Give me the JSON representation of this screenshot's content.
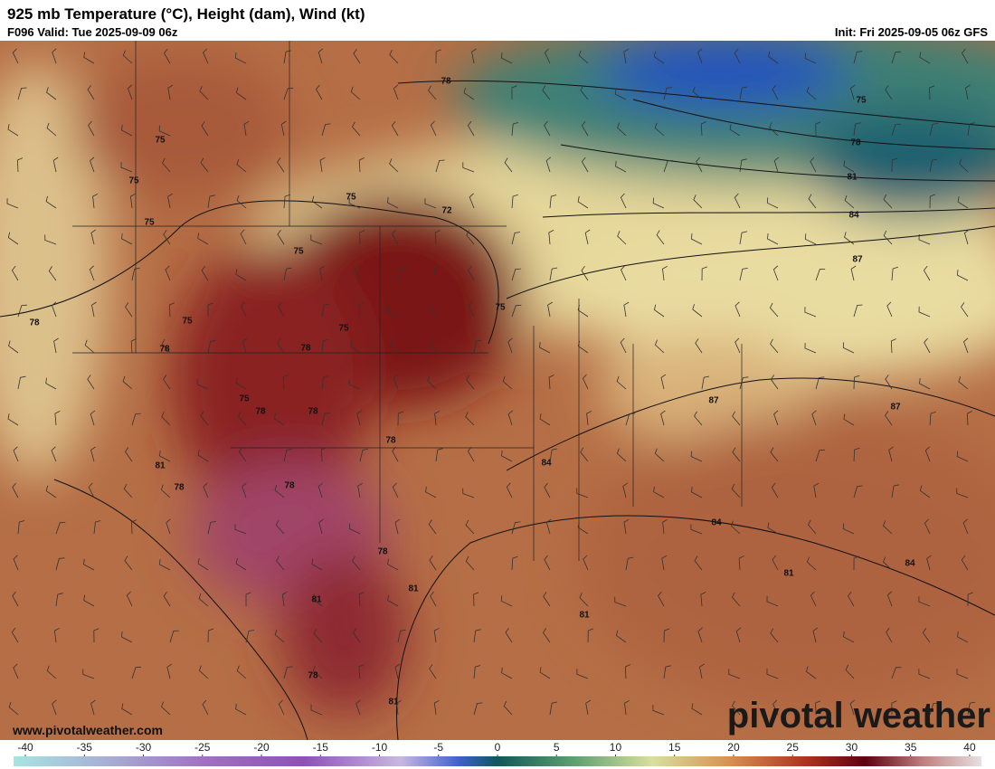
{
  "header": {
    "title": "925 mb Temperature (°C), Height (dam), Wind (kt)",
    "valid": "F096 Valid: Tue 2025-09-09 06z",
    "init": "Init: Fri 2025-09-05 06z GFS"
  },
  "map": {
    "height_labels": [
      "78",
      "75",
      "75",
      "75",
      "72",
      "75",
      "75",
      "78",
      "75",
      "78",
      "75",
      "78",
      "75",
      "75",
      "78",
      "78",
      "78",
      "81",
      "78",
      "78",
      "84",
      "87",
      "87",
      "84",
      "78",
      "81",
      "81",
      "81",
      "84",
      "81",
      "78",
      "81",
      "75",
      "78",
      "81",
      "84",
      "87"
    ]
  },
  "footer": {
    "website": "www.pivotalweather.com",
    "watermark": "pivotal weather"
  },
  "colorbar": {
    "lim": [
      -41,
      41
    ],
    "ticks": [
      -40,
      -35,
      -30,
      -25,
      -20,
      -15,
      -10,
      -5,
      0,
      5,
      10,
      15,
      20,
      25,
      30,
      35,
      40
    ]
  }
}
